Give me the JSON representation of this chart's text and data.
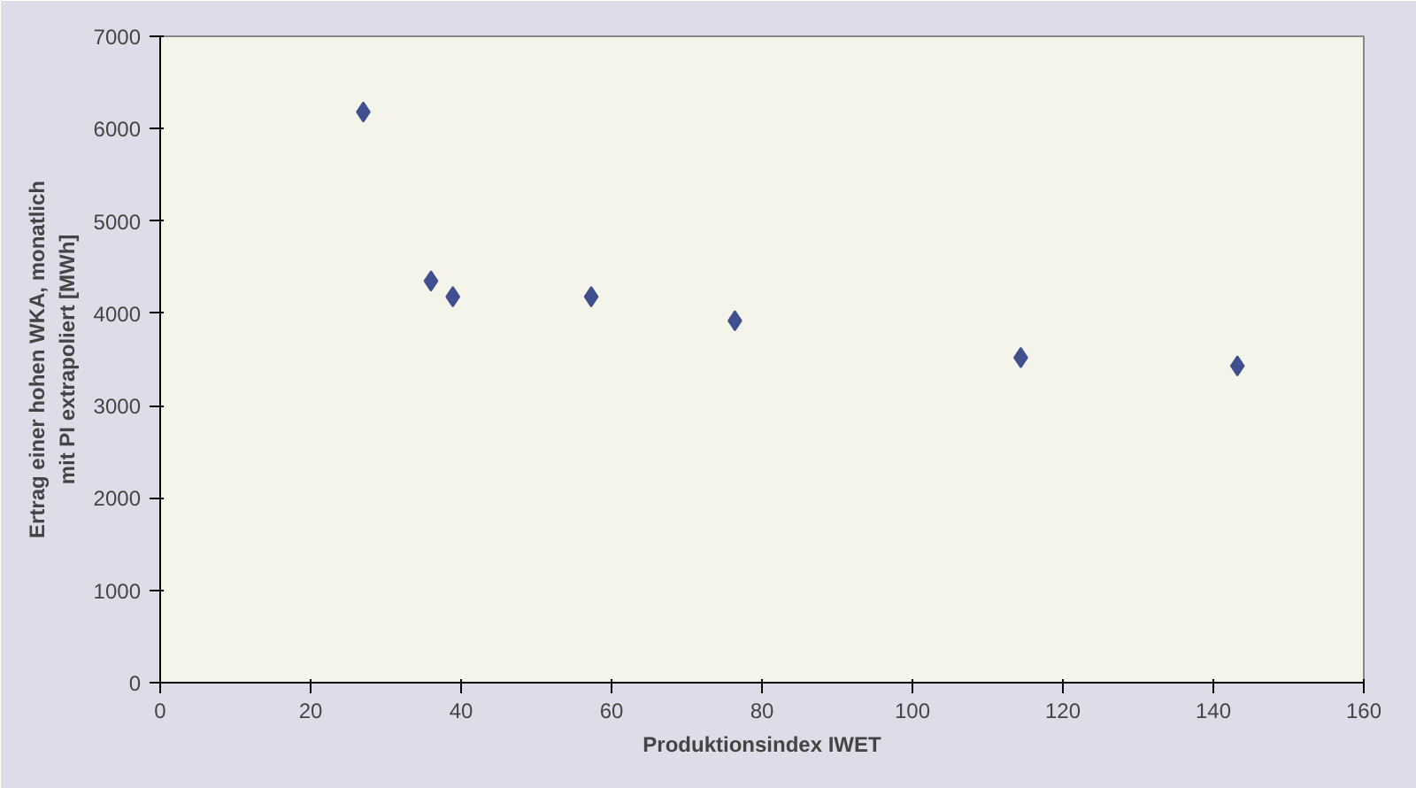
{
  "chart_data": {
    "type": "scatter",
    "xlabel": "Produktionsindex IWET",
    "ylabel": "Ertrag einer hohen WKA, monatlich mit PI extrapoliert [MWh]",
    "x": [
      27,
      36,
      38.9,
      57.3,
      76.4,
      114.4,
      143.2
    ],
    "values": [
      6180,
      4350,
      4180,
      4180,
      3920,
      3520,
      3430
    ],
    "color": "#3f4f8f",
    "marker": "diamond",
    "xlim": [
      0,
      160
    ],
    "xticks": [
      0,
      20,
      40,
      60,
      80,
      100,
      120,
      140,
      160
    ],
    "ylim": [
      0,
      7000
    ],
    "yticks": [
      0,
      1000,
      2000,
      3000,
      4000,
      5000,
      6000,
      7000
    ],
    "grid": false
  }
}
